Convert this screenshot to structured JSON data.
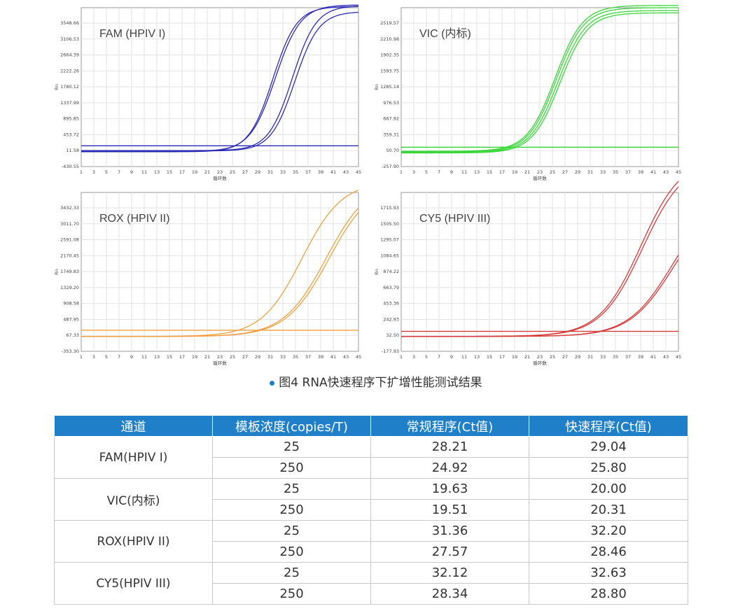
{
  "chart_data": [
    {
      "type": "line",
      "title": "FAM (HPIV I)",
      "xlabel": "循环数",
      "ylabel": "Rn",
      "x_ticks": [
        "1",
        "3",
        "5",
        "7",
        "9",
        "11",
        "13",
        "15",
        "17",
        "19",
        "21",
        "23",
        "25",
        "27",
        "29",
        "31",
        "33",
        "35",
        "37",
        "39",
        "41",
        "43",
        "45"
      ],
      "y_ticks": [
        "3548.66",
        "3106.53",
        "2664.39",
        "2222.26",
        "1780.12",
        "1337.99",
        "895.85",
        "453.72",
        "11.58",
        "-430.55"
      ],
      "xlim": [
        1,
        45
      ],
      "ylim": [
        -430.55,
        3548.66
      ],
      "threshold": 90,
      "color": "#2b2bb8",
      "series": [
        {
          "baseline": -60,
          "plateau": 3580,
          "midpoint": 31.4,
          "slope": 1.9
        },
        {
          "baseline": -50,
          "plateau": 3620,
          "midpoint": 31.8,
          "slope": 2.0
        },
        {
          "baseline": -30,
          "plateau": 3600,
          "midpoint": 34.5,
          "slope": 1.9
        },
        {
          "baseline": -40,
          "plateau": 3450,
          "midpoint": 34.9,
          "slope": 1.9
        }
      ]
    },
    {
      "type": "line",
      "title": "VIC (内标)",
      "xlabel": "循环数",
      "ylabel": "Rn",
      "x_ticks": [
        "1",
        "3",
        "5",
        "7",
        "9",
        "11",
        "13",
        "15",
        "17",
        "19",
        "21",
        "23",
        "25",
        "27",
        "29",
        "31",
        "33",
        "35",
        "37",
        "39",
        "41",
        "43",
        "45"
      ],
      "y_ticks": [
        "2519.57",
        "2210.98",
        "1902.35",
        "1593.75",
        "1285.14",
        "976.53",
        "667.92",
        "359.31",
        "50.70",
        "-257.90"
      ],
      "xlim": [
        1,
        45
      ],
      "ylim": [
        -257.9,
        2519.57
      ],
      "threshold": 80,
      "color": "#3ad63a",
      "series": [
        {
          "baseline": 10,
          "plateau": 2560,
          "midpoint": 25.4,
          "slope": 2.2
        },
        {
          "baseline": 0,
          "plateau": 2520,
          "midpoint": 25.6,
          "slope": 2.2
        },
        {
          "baseline": -10,
          "plateau": 2470,
          "midpoint": 25.9,
          "slope": 2.2
        },
        {
          "baseline": -20,
          "plateau": 2430,
          "midpoint": 26.2,
          "slope": 2.2
        }
      ]
    },
    {
      "type": "line",
      "title": "ROX (HPIV II)",
      "xlabel": "循环数",
      "ylabel": "Rn",
      "x_ticks": [
        "1",
        "3",
        "5",
        "7",
        "9",
        "11",
        "13",
        "15",
        "17",
        "19",
        "21",
        "23",
        "25",
        "27",
        "29",
        "31",
        "33",
        "35",
        "37",
        "39",
        "41",
        "43",
        "45"
      ],
      "y_ticks": [
        "3432.33",
        "3011.70",
        "2591.08",
        "2170.45",
        "1749.83",
        "1329.20",
        "908.58",
        "487.95",
        "67.33",
        "-353.30"
      ],
      "xlim": [
        1,
        45
      ],
      "ylim": [
        -353.3,
        3432.33
      ],
      "threshold": 150,
      "color": "#f0a040",
      "series": [
        {
          "baseline": 0,
          "plateau": 3700,
          "midpoint": 36.0,
          "slope": 3.2
        },
        {
          "baseline": 0,
          "plateau": 3750,
          "midpoint": 39.9,
          "slope": 3.4
        },
        {
          "baseline": 0,
          "plateau": 3700,
          "midpoint": 40.3,
          "slope": 3.4
        }
      ]
    },
    {
      "type": "line",
      "title": "CY5 (HPIV III)",
      "xlabel": "循环数",
      "ylabel": "Rn",
      "x_ticks": [
        "1",
        "3",
        "5",
        "7",
        "9",
        "11",
        "13",
        "15",
        "17",
        "19",
        "21",
        "23",
        "25",
        "27",
        "29",
        "31",
        "33",
        "35",
        "37",
        "39",
        "41",
        "43",
        "45"
      ],
      "y_ticks": [
        "1715.93",
        "1505.50",
        "1295.07",
        "1084.65",
        "874.22",
        "663.79",
        "453.36",
        "242.93",
        "32.50",
        "-177.93"
      ],
      "xlim": [
        1,
        45
      ],
      "ylim": [
        -177.93,
        1715.93
      ],
      "threshold": 60,
      "color": "#d83a3a",
      "series": [
        {
          "baseline": 0,
          "plateau": 2150,
          "midpoint": 39.0,
          "slope": 3.3
        },
        {
          "baseline": 0,
          "plateau": 2100,
          "midpoint": 39.3,
          "slope": 3.3
        },
        {
          "baseline": 0,
          "plateau": 1700,
          "midpoint": 44.0,
          "slope": 3.5
        },
        {
          "baseline": 0,
          "plateau": 1650,
          "midpoint": 44.2,
          "slope": 3.5
        }
      ]
    }
  ],
  "caption": "图4 RNA快速程序下扩增性能测试结果",
  "table": {
    "headers": [
      "通道",
      "模板浓度(copies/T)",
      "常规程序(Ct值)",
      "快速程序(Ct值)"
    ],
    "groups": [
      {
        "channel": "FAM(HPIV I)",
        "rows": [
          [
            "25",
            "28.21",
            "29.04"
          ],
          [
            "250",
            "24.92",
            "25.80"
          ]
        ]
      },
      {
        "channel": "VIC(内标)",
        "rows": [
          [
            "25",
            "19.63",
            "20.00"
          ],
          [
            "250",
            "19.51",
            "20.31"
          ]
        ]
      },
      {
        "channel": "ROX(HPIV II)",
        "rows": [
          [
            "25",
            "31.36",
            "32.20"
          ],
          [
            "250",
            "27.57",
            "28.46"
          ]
        ]
      },
      {
        "channel": "CY5(HPIV III)",
        "rows": [
          [
            "25",
            "32.12",
            "32.63"
          ],
          [
            "250",
            "28.34",
            "28.80"
          ]
        ]
      }
    ]
  }
}
